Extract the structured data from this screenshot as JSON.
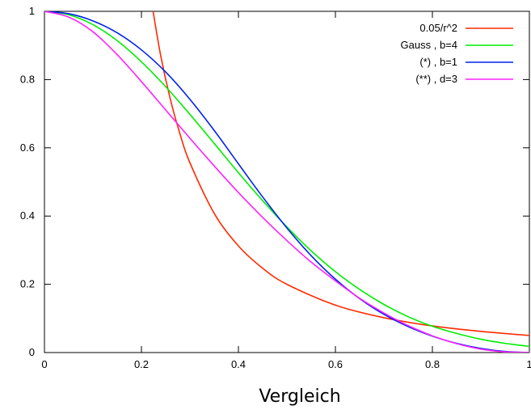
{
  "chart_data": {
    "type": "line",
    "title": "",
    "xlabel": "Vergleich",
    "ylabel": "",
    "xlim": [
      0,
      1
    ],
    "ylim": [
      0,
      1
    ],
    "grid": false,
    "legend_position": "top-right",
    "x_ticks": [
      "0",
      "0.2",
      "0.4",
      "0.6",
      "0.8",
      "1"
    ],
    "y_ticks": [
      "0",
      "0.2",
      "0.4",
      "0.6",
      "0.8",
      "1"
    ],
    "series": [
      {
        "name": "0.05/r^2",
        "color": "#ff2a00",
        "x": [
          0.224,
          0.24,
          0.26,
          0.28,
          0.3,
          0.35,
          0.4,
          0.45,
          0.5,
          0.6,
          0.7,
          0.8,
          0.9,
          1.0
        ],
        "y": [
          1.0,
          0.868,
          0.74,
          0.638,
          0.556,
          0.408,
          0.3125,
          0.247,
          0.2,
          0.139,
          0.102,
          0.078,
          0.062,
          0.05
        ]
      },
      {
        "name": "Gauss ,  b=4",
        "color": "#00ee00",
        "x": [
          0,
          0.05,
          0.1,
          0.15,
          0.2,
          0.25,
          0.3,
          0.35,
          0.4,
          0.45,
          0.5,
          0.55,
          0.6,
          0.65,
          0.7,
          0.75,
          0.8,
          0.85,
          0.9,
          0.95,
          1.0
        ],
        "y": [
          1.0,
          0.99,
          0.961,
          0.914,
          0.852,
          0.779,
          0.698,
          0.613,
          0.527,
          0.445,
          0.368,
          0.298,
          0.237,
          0.185,
          0.141,
          0.105,
          0.077,
          0.056,
          0.039,
          0.027,
          0.018
        ]
      },
      {
        "name": "(*) ,  b=1",
        "color": "#0022ee",
        "x": [
          0,
          0.05,
          0.1,
          0.15,
          0.2,
          0.25,
          0.3,
          0.35,
          0.4,
          0.45,
          0.5,
          0.55,
          0.6,
          0.65,
          0.7,
          0.75,
          0.8,
          0.85,
          0.9,
          0.95,
          1.0
        ],
        "y": [
          1.0,
          0.993,
          0.972,
          0.937,
          0.887,
          0.822,
          0.742,
          0.651,
          0.553,
          0.456,
          0.365,
          0.284,
          0.215,
          0.158,
          0.112,
          0.076,
          0.048,
          0.027,
          0.012,
          0.003,
          0.0
        ]
      },
      {
        "name": "(**) , d=3",
        "color": "#ff22ff",
        "x": [
          0,
          0.05,
          0.1,
          0.15,
          0.2,
          0.25,
          0.3,
          0.35,
          0.4,
          0.45,
          0.5,
          0.55,
          0.6,
          0.65,
          0.7,
          0.75,
          0.8,
          0.85,
          0.9,
          0.95,
          1.0
        ],
        "y": [
          1.0,
          0.983,
          0.94,
          0.873,
          0.794,
          0.711,
          0.628,
          0.547,
          0.469,
          0.396,
          0.328,
          0.265,
          0.21,
          0.159,
          0.116,
          0.079,
          0.049,
          0.026,
          0.01,
          0.002,
          0.0
        ]
      }
    ]
  }
}
